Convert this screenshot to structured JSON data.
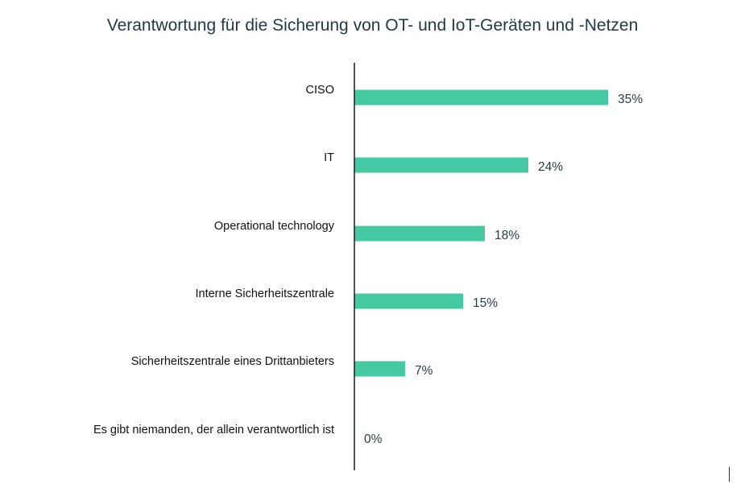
{
  "chart_data": {
    "type": "bar",
    "orientation": "horizontal",
    "title": "Verantwortung für die Sicherung von OT- und IoT-Geräten und -Netzen",
    "categories": [
      "CISO",
      "IT",
      "Operational technology",
      "Interne Sicherheitszentrale",
      "Sicherheitszentrale eines Drittanbieters",
      "Es gibt niemanden, der allein verantwortlich ist"
    ],
    "values": [
      35,
      24,
      18,
      15,
      7,
      0
    ],
    "value_labels": [
      "35%",
      "24%",
      "18%",
      "15%",
      "7%",
      "0%"
    ],
    "unit": "%",
    "xlim": [
      0,
      40
    ],
    "grid": false,
    "legend": "none",
    "bar_color": "#44c9a3",
    "axis_color": "#1a1a1a"
  }
}
